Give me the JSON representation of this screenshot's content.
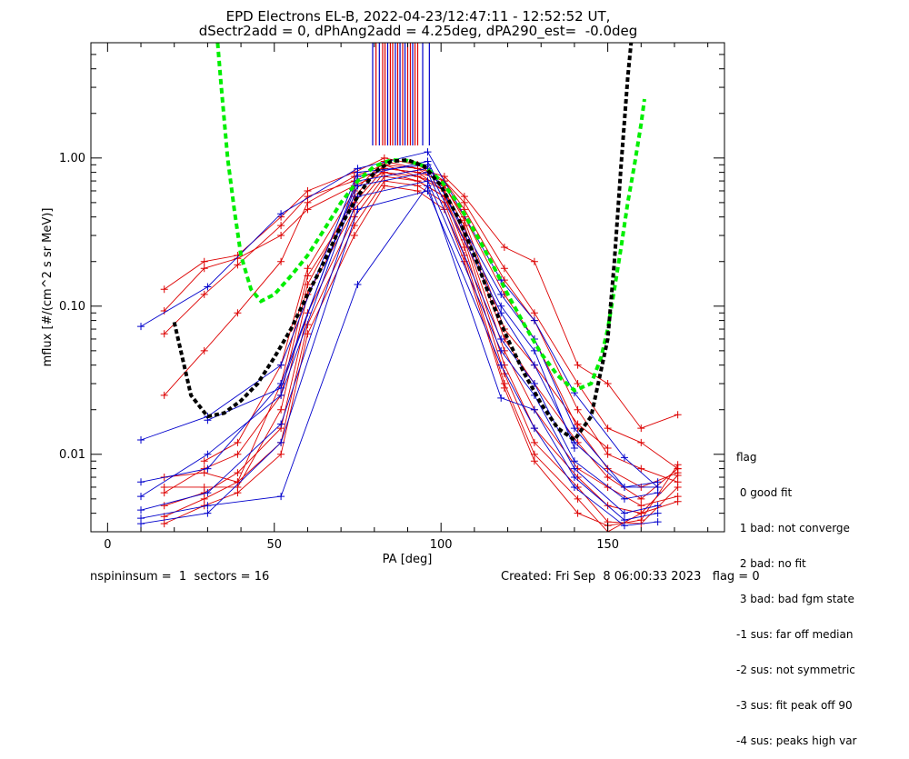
{
  "header": {
    "title_line1": "EPD Electrons EL-B, 2022-04-23/12:47:11 - 12:52:52 UT,",
    "title_line2": "dSectr2add = 0, dPhAng2add = 4.25deg, dPA290_est=  -0.0deg"
  },
  "legend": {
    "heading": "flag",
    "items": [
      " 0 good fit",
      " 1 bad: not converge",
      " 2 bad: no fit",
      " 3 bad: bad fgm state",
      "-1 sus: far off median",
      "-2 sus: not symmetric",
      "-3 sus: fit peak off 90",
      "-4 sus: peaks high var"
    ]
  },
  "footer": {
    "left": "nspininsum =  1  sectors = 16",
    "right": "Created: Fri Sep  8 06:00:33 2023   flag = 0"
  },
  "colors": {
    "red_series": "#dd0000",
    "blue_series": "#0000cc",
    "median_fit": "#000000",
    "green_fit": "#00ee00"
  },
  "chart_data": {
    "type": "line",
    "xlabel": "PA [deg]",
    "ylabel": "mflux [#/(cm^2 s sr MeV)]",
    "xlim": [
      -5,
      185
    ],
    "ylim": [
      0.003,
      6.0
    ],
    "yscale": "log",
    "x_ticks": [
      0,
      50,
      100,
      150
    ],
    "x_tick_labels": [
      "0",
      "50",
      "100",
      "150"
    ],
    "y_ticks": [
      0.01,
      0.1,
      1.0
    ],
    "y_tick_labels": [
      "0.01",
      "0.10",
      "1.00"
    ],
    "grid": false,
    "marker": "+",
    "series": [
      {
        "color": "red",
        "x": [
          17,
          29,
          39,
          52,
          60,
          74,
          83,
          93,
          101,
          107,
          119,
          128,
          141,
          150,
          160,
          171
        ],
        "y": [
          0.13,
          0.2,
          0.22,
          0.4,
          0.6,
          0.8,
          1.0,
          0.9,
          0.7,
          0.5,
          0.18,
          0.09,
          0.03,
          0.015,
          0.012,
          0.008
        ]
      },
      {
        "color": "red",
        "x": [
          17,
          29,
          39,
          52,
          60,
          74,
          83,
          93,
          101,
          107,
          119,
          128,
          141,
          150,
          160,
          171
        ],
        "y": [
          0.025,
          0.05,
          0.09,
          0.2,
          0.5,
          0.75,
          0.9,
          0.85,
          0.75,
          0.55,
          0.25,
          0.2,
          0.04,
          0.03,
          0.015,
          0.0185
        ]
      },
      {
        "color": "red",
        "x": [
          17,
          29,
          39,
          52,
          60,
          74,
          83,
          93,
          101,
          107,
          119,
          128,
          141,
          150,
          160,
          171
        ],
        "y": [
          0.065,
          0.12,
          0.19,
          0.35,
          0.55,
          0.7,
          0.85,
          0.8,
          0.7,
          0.45,
          0.15,
          0.08,
          0.02,
          0.01,
          0.008,
          0.0065
        ]
      },
      {
        "color": "red",
        "x": [
          17,
          29,
          39,
          52,
          60,
          74,
          83,
          93,
          101,
          107,
          119,
          128,
          141,
          150,
          160,
          171
        ],
        "y": [
          0.093,
          0.18,
          0.21,
          0.3,
          0.45,
          0.65,
          0.8,
          0.75,
          0.65,
          0.4,
          0.12,
          0.06,
          0.015,
          0.008,
          0.006,
          0.0075
        ]
      },
      {
        "color": "red",
        "x": [
          17,
          29,
          39,
          52,
          60,
          74,
          83,
          93,
          101,
          107,
          119,
          128,
          141,
          150,
          160,
          171
        ],
        "y": [
          0.007,
          0.0075,
          0.0065,
          0.03,
          0.16,
          0.5,
          0.85,
          0.8,
          0.6,
          0.3,
          0.05,
          0.02,
          0.008,
          0.006,
          0.0045,
          0.0052
        ]
      },
      {
        "color": "red",
        "x": [
          17,
          29,
          39,
          52,
          60,
          74,
          83,
          93,
          101,
          107,
          119,
          128,
          141,
          150,
          160,
          171
        ],
        "y": [
          0.006,
          0.006,
          0.006,
          0.02,
          0.12,
          0.45,
          0.8,
          0.7,
          0.55,
          0.28,
          0.04,
          0.015,
          0.007,
          0.0045,
          0.004,
          0.0048
        ]
      },
      {
        "color": "red",
        "x": [
          17,
          29,
          39,
          52,
          60,
          74,
          83,
          93,
          101,
          107,
          119,
          128,
          141,
          150,
          160,
          171
        ],
        "y": [
          0.0055,
          0.008,
          0.01,
          0.025,
          0.14,
          0.55,
          0.9,
          0.75,
          0.6,
          0.35,
          0.06,
          0.03,
          0.012,
          0.007,
          0.005,
          0.008
        ]
      },
      {
        "color": "red",
        "x": [
          17,
          29,
          39,
          52,
          60,
          74,
          83,
          93,
          101,
          107,
          119,
          128,
          141,
          150,
          160,
          171
        ],
        "y": [
          0.0045,
          0.0055,
          0.0075,
          0.015,
          0.09,
          0.4,
          0.75,
          0.7,
          0.55,
          0.25,
          0.035,
          0.012,
          0.006,
          0.0035,
          0.0034,
          0.006
        ]
      },
      {
        "color": "red",
        "x": [
          17,
          29,
          39,
          52,
          60,
          74,
          83,
          93,
          101,
          107,
          119,
          128,
          141,
          150,
          160,
          171
        ],
        "y": [
          0.0038,
          0.005,
          0.0065,
          0.012,
          0.075,
          0.35,
          0.7,
          0.65,
          0.5,
          0.22,
          0.03,
          0.01,
          0.005,
          0.003,
          0.004,
          0.0072
        ]
      },
      {
        "color": "red",
        "x": [
          17,
          29,
          39,
          52,
          60,
          74,
          83,
          93,
          101,
          107,
          119,
          128,
          141,
          150,
          160,
          171
        ],
        "y": [
          0.0034,
          0.0045,
          0.0055,
          0.01,
          0.065,
          0.3,
          0.65,
          0.6,
          0.45,
          0.2,
          0.028,
          0.009,
          0.004,
          0.0033,
          0.0036,
          0.0085
        ]
      },
      {
        "color": "red",
        "x": [
          29,
          39,
          52,
          60,
          74,
          83,
          93,
          101,
          107,
          119,
          128,
          141,
          150
        ],
        "y": [
          0.009,
          0.012,
          0.04,
          0.18,
          0.6,
          0.95,
          0.85,
          0.65,
          0.38,
          0.07,
          0.04,
          0.016,
          0.011
        ]
      },
      {
        "color": "blue",
        "x": [
          10,
          30,
          52,
          75,
          96,
          118,
          128,
          140,
          155,
          165
        ],
        "y": [
          0.073,
          0.135,
          0.42,
          0.85,
          1.1,
          0.15,
          0.08,
          0.026,
          0.0095,
          0.006
        ]
      },
      {
        "color": "blue",
        "x": [
          10,
          30,
          52,
          75,
          96,
          118,
          128,
          140,
          155,
          165
        ],
        "y": [
          0.0125,
          0.018,
          0.04,
          0.8,
          0.9,
          0.12,
          0.06,
          0.015,
          0.006,
          0.006
        ]
      },
      {
        "color": "blue",
        "x": [
          10,
          30,
          52,
          75,
          96,
          118,
          128,
          140,
          155,
          165
        ],
        "y": [
          0.0065,
          0.008,
          0.03,
          0.7,
          0.85,
          0.09,
          0.04,
          0.012,
          0.006,
          0.0065
        ]
      },
      {
        "color": "blue",
        "x": [
          10,
          30,
          52,
          75,
          96,
          118,
          128,
          140,
          155,
          165
        ],
        "y": [
          0.0052,
          0.01,
          0.025,
          0.65,
          0.8,
          0.06,
          0.03,
          0.009,
          0.005,
          0.0055
        ]
      },
      {
        "color": "blue",
        "x": [
          10,
          30,
          52,
          75,
          96,
          118,
          128,
          140,
          155,
          165
        ],
        "y": [
          0.0042,
          0.0055,
          0.016,
          0.55,
          0.7,
          0.05,
          0.025,
          0.008,
          0.004,
          0.0045
        ]
      },
      {
        "color": "blue",
        "x": [
          10,
          30,
          52,
          75,
          96,
          118,
          128,
          140,
          155,
          165
        ],
        "y": [
          0.0037,
          0.0045,
          0.0052,
          0.14,
          0.65,
          0.024,
          0.02,
          0.007,
          0.0036,
          0.004
        ]
      },
      {
        "color": "blue",
        "x": [
          10,
          30,
          52,
          75,
          96,
          118,
          128,
          140,
          155,
          165
        ],
        "y": [
          0.0034,
          0.004,
          0.012,
          0.45,
          0.6,
          0.04,
          0.015,
          0.006,
          0.0033,
          0.0035
        ]
      },
      {
        "color": "blue",
        "x": [
          30,
          52,
          75,
          96,
          118,
          128,
          140
        ],
        "y": [
          0.017,
          0.028,
          0.75,
          0.95,
          0.1,
          0.05,
          0.011
        ]
      }
    ],
    "median_fit": {
      "x": [
        20,
        25,
        30,
        35,
        40,
        45,
        50,
        55,
        60,
        65,
        70,
        75,
        80,
        85,
        90,
        95,
        100,
        105,
        110,
        115,
        120,
        125,
        130,
        135,
        140,
        145,
        150,
        152,
        154,
        156,
        157
      ],
      "y": [
        0.078,
        0.025,
        0.018,
        0.019,
        0.023,
        0.03,
        0.045,
        0.07,
        0.12,
        0.2,
        0.35,
        0.55,
        0.8,
        0.95,
        0.97,
        0.88,
        0.65,
        0.4,
        0.22,
        0.11,
        0.06,
        0.035,
        0.022,
        0.015,
        0.0125,
        0.018,
        0.06,
        0.2,
        0.9,
        3.5,
        6.0
      ]
    },
    "green_fit": {
      "x": [
        33,
        34,
        36,
        38,
        40,
        43,
        46,
        50,
        55,
        60,
        65,
        70,
        75,
        80,
        85,
        90,
        95,
        100,
        105,
        110,
        115,
        120,
        125,
        130,
        135,
        140,
        145,
        148,
        150,
        152,
        154,
        156,
        158,
        160,
        161
      ],
      "y": [
        6.0,
        3.2,
        1.0,
        0.45,
        0.22,
        0.13,
        0.108,
        0.12,
        0.16,
        0.22,
        0.33,
        0.5,
        0.7,
        0.88,
        0.97,
        0.96,
        0.88,
        0.7,
        0.5,
        0.32,
        0.2,
        0.12,
        0.075,
        0.048,
        0.034,
        0.027,
        0.03,
        0.045,
        0.07,
        0.13,
        0.25,
        0.5,
        0.9,
        1.7,
        2.5
      ]
    },
    "sector_markers": {
      "x": [
        79.5,
        80.5,
        81.5,
        82.5,
        83.2,
        84,
        84.8,
        85.5,
        86.3,
        87,
        87.7,
        88.5,
        89.2,
        90,
        90.8,
        91.5,
        92.2,
        93,
        94.5,
        96.5
      ],
      "colors": [
        "blue",
        "red",
        "blue",
        "red",
        "red",
        "blue",
        "red",
        "red",
        "blue",
        "red",
        "blue",
        "red",
        "blue",
        "red",
        "red",
        "blue",
        "red",
        "red",
        "blue",
        "blue"
      ]
    }
  }
}
